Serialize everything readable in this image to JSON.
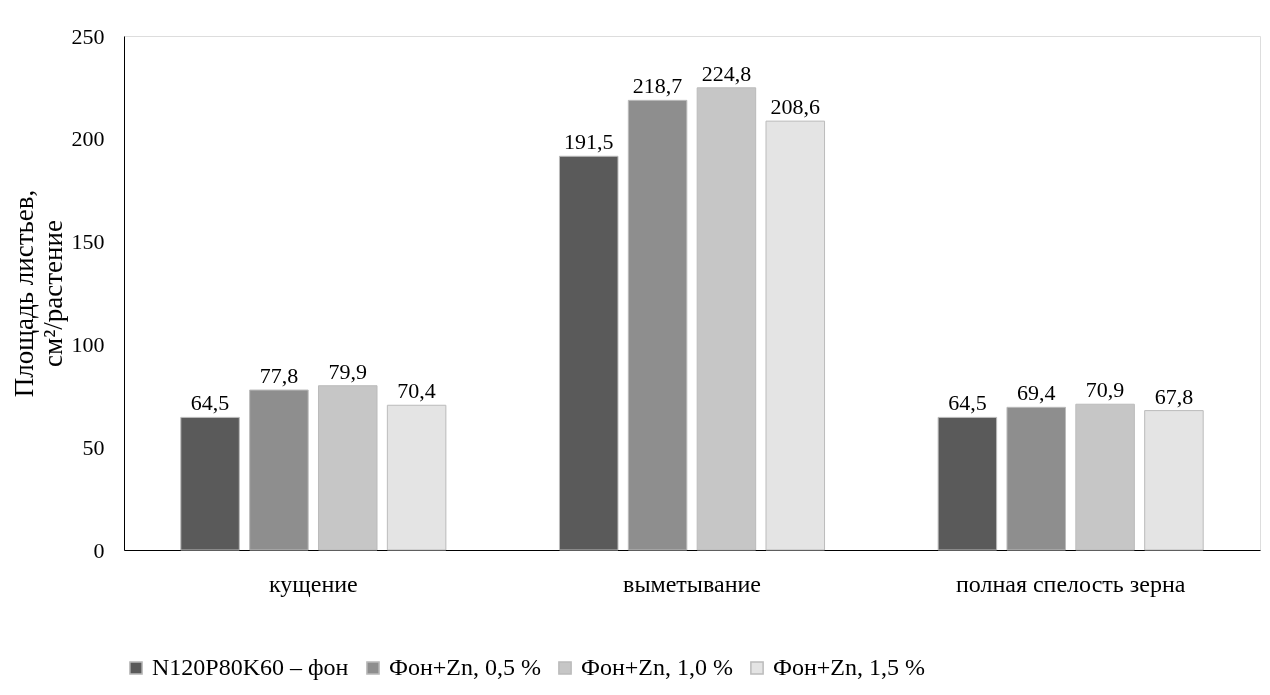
{
  "chart_data": {
    "type": "bar",
    "ylabel": "Площадь листьев,\nсм²/растение",
    "categories": [
      "кущение",
      "выметывание",
      "полная спелость зерна"
    ],
    "series": [
      {
        "name": "N120P80K60 – фон",
        "color": "#5a5a5a",
        "values": [
          64.5,
          191.5,
          64.5
        ],
        "value_labels": [
          "64,5",
          "191,5",
          "64,5"
        ]
      },
      {
        "name": "Фон+Zn, 0,5 %",
        "color": "#8e8e8e",
        "values": [
          77.8,
          218.7,
          69.4
        ],
        "value_labels": [
          "77,8",
          "218,7",
          "69,4"
        ]
      },
      {
        "name": "Фон+Zn, 1,0 %",
        "color": "#c6c6c6",
        "values": [
          79.9,
          224.8,
          70.9
        ],
        "value_labels": [
          "79,9",
          "224,8",
          "70,9"
        ]
      },
      {
        "name": "Фон+Zn, 1,5 %",
        "color": "#e4e4e4",
        "values": [
          70.4,
          208.6,
          67.8
        ],
        "value_labels": [
          "70,4",
          "208,6",
          "67,8"
        ]
      }
    ],
    "ylim": [
      0,
      250
    ],
    "yticks": [
      0,
      50,
      100,
      150,
      200,
      250
    ],
    "grid": false,
    "legend": "bottom"
  }
}
